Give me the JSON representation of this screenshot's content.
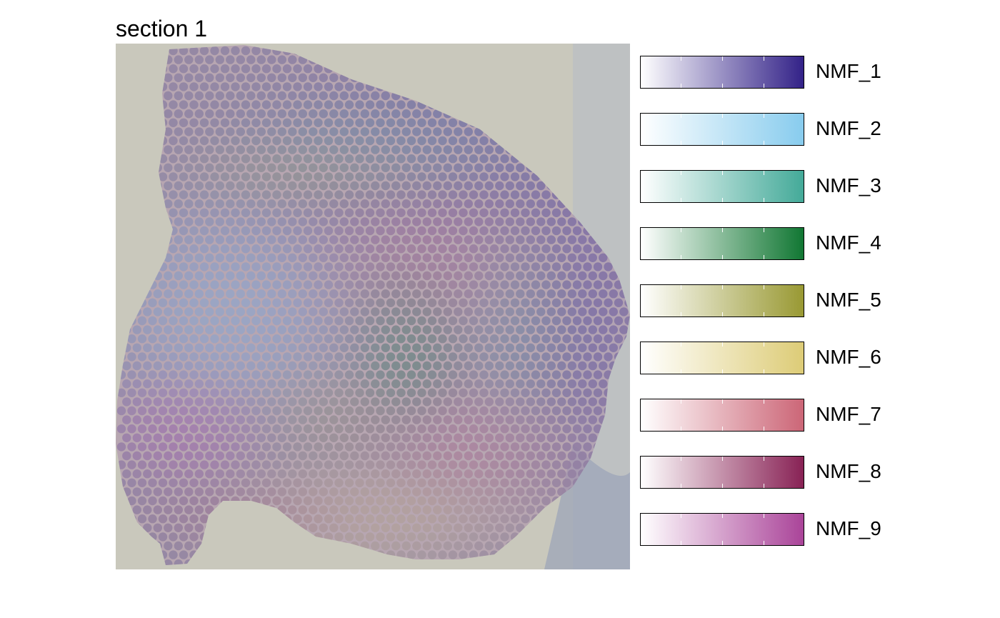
{
  "chart_data": {
    "type": "scatter",
    "title": "section 1",
    "description_note": "",
    "series": [
      {
        "name": "NMF_1",
        "color": "#332288"
      },
      {
        "name": "NMF_2",
        "color": "#88CCEE"
      },
      {
        "name": "NMF_3",
        "color": "#44AA99"
      },
      {
        "name": "NMF_4",
        "color": "#117733"
      },
      {
        "name": "NMF_5",
        "color": "#999933"
      },
      {
        "name": "NMF_6",
        "color": "#DDCC77"
      },
      {
        "name": "NMF_7",
        "color": "#CC6677"
      },
      {
        "name": "NMF_8",
        "color": "#882255"
      },
      {
        "name": "NMF_9",
        "color": "#AA4499"
      }
    ],
    "legend_position": "right",
    "background": "histology image",
    "grid": false
  }
}
